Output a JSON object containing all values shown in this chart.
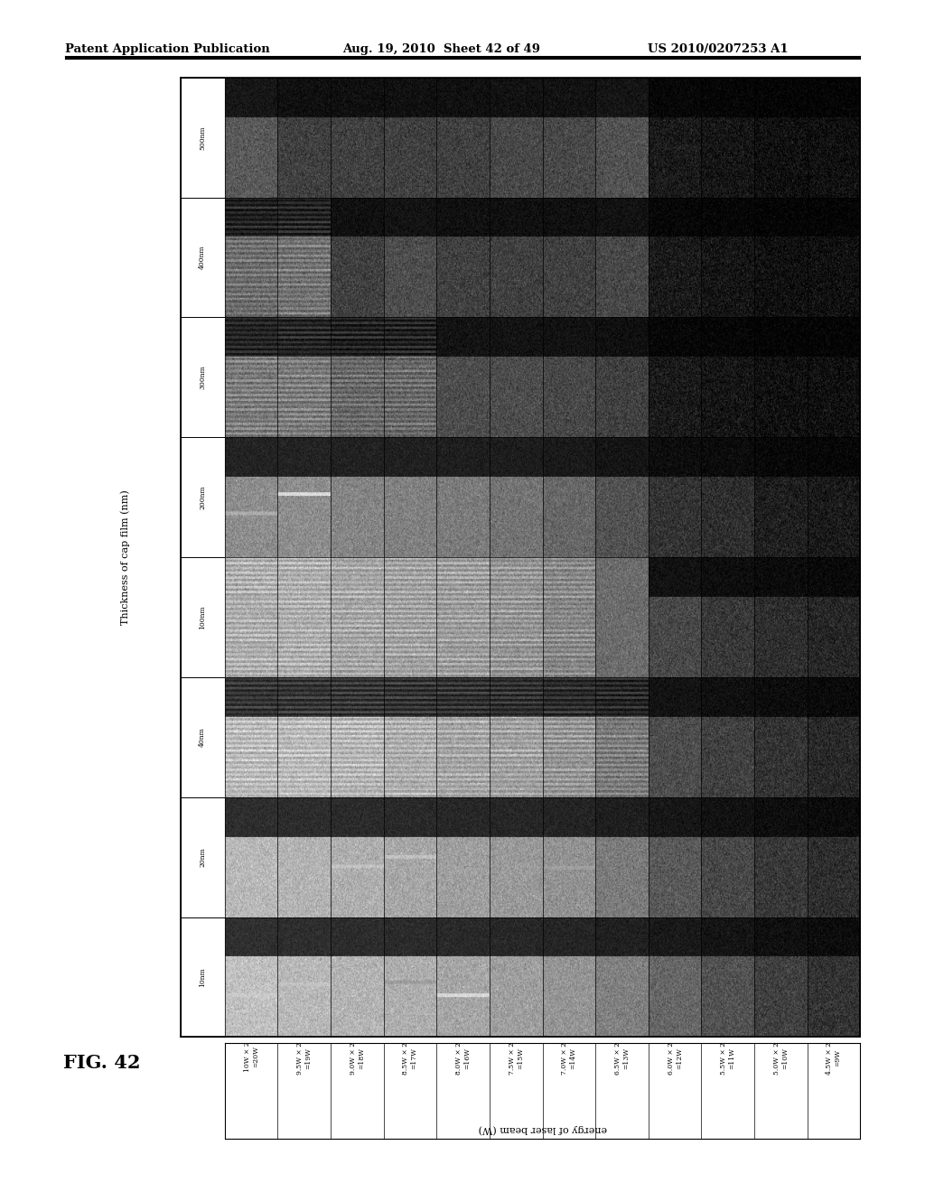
{
  "title_left": "Patent Application Publication",
  "title_mid": "Aug. 19, 2010  Sheet 42 of 49",
  "title_right": "US 2010/0207253 A1",
  "fig_label": "FIG. 42",
  "y_label": "Thickness of cap film (nm)",
  "x_label": "energy of laser beam (W)",
  "y_ticks": [
    "500nm",
    "400nm",
    "300nm",
    "200nm",
    "100nm",
    "40nm",
    "20nm",
    "10nm"
  ],
  "x_ticks": [
    "10W × 2\n=20W",
    "9.5W × 2\n=19W",
    "9.0W × 2\n=18W",
    "8.5W × 2\n=17W",
    "8.0W × 2\n=16W",
    "7.5W × 2\n=15W",
    "7.0W × 2\n=14W",
    "6.5W × 2\n=13W",
    "6.0W × 2\n=12W",
    "5.5W × 2\n=11W",
    "5.0W × 2\n=10W",
    "4.5W × 2\n=9W"
  ],
  "n_rows": 8,
  "n_cols": 12,
  "background_color": "#ffffff",
  "border_color": "#000000",
  "cell_brightness": [
    [
      0.35,
      0.25,
      0.25,
      0.25,
      0.25,
      0.28,
      0.28,
      0.32,
      0.1,
      0.08,
      0.06,
      0.06
    ],
    [
      0.4,
      0.42,
      0.25,
      0.3,
      0.25,
      0.25,
      0.25,
      0.28,
      0.1,
      0.08,
      0.06,
      0.06
    ],
    [
      0.45,
      0.45,
      0.38,
      0.38,
      0.3,
      0.3,
      0.28,
      0.25,
      0.1,
      0.08,
      0.06,
      0.06
    ],
    [
      0.55,
      0.55,
      0.52,
      0.5,
      0.48,
      0.45,
      0.4,
      0.32,
      0.2,
      0.18,
      0.12,
      0.1
    ],
    [
      0.65,
      0.65,
      0.62,
      0.6,
      0.58,
      0.55,
      0.5,
      0.42,
      0.28,
      0.22,
      0.18,
      0.15
    ],
    [
      0.7,
      0.7,
      0.68,
      0.65,
      0.62,
      0.6,
      0.55,
      0.45,
      0.3,
      0.25,
      0.2,
      0.16
    ],
    [
      0.72,
      0.7,
      0.68,
      0.65,
      0.62,
      0.6,
      0.57,
      0.48,
      0.35,
      0.28,
      0.22,
      0.18
    ],
    [
      0.75,
      0.72,
      0.7,
      0.68,
      0.65,
      0.62,
      0.58,
      0.5,
      0.4,
      0.32,
      0.25,
      0.2
    ]
  ],
  "cell_top_dark": [
    [
      true,
      true,
      true,
      true,
      true,
      true,
      true,
      true,
      true,
      true,
      true,
      true
    ],
    [
      true,
      true,
      true,
      true,
      true,
      true,
      true,
      true,
      true,
      true,
      true,
      true
    ],
    [
      true,
      true,
      true,
      true,
      true,
      true,
      true,
      true,
      true,
      true,
      true,
      true
    ],
    [
      true,
      true,
      true,
      true,
      true,
      true,
      true,
      true,
      true,
      true,
      true,
      true
    ],
    [
      false,
      false,
      false,
      false,
      false,
      false,
      false,
      false,
      true,
      true,
      true,
      true
    ],
    [
      true,
      true,
      true,
      true,
      true,
      true,
      true,
      true,
      true,
      true,
      true,
      true
    ],
    [
      true,
      true,
      true,
      true,
      true,
      true,
      true,
      true,
      true,
      true,
      true,
      true
    ],
    [
      true,
      true,
      true,
      true,
      true,
      true,
      true,
      true,
      true,
      true,
      true,
      true
    ]
  ],
  "cell_has_stripes": [
    [
      false,
      false,
      false,
      false,
      false,
      false,
      false,
      false,
      false,
      false,
      false,
      false
    ],
    [
      true,
      true,
      false,
      false,
      false,
      false,
      false,
      false,
      false,
      false,
      false,
      false
    ],
    [
      true,
      true,
      true,
      true,
      false,
      false,
      false,
      false,
      false,
      false,
      false,
      false
    ],
    [
      false,
      false,
      false,
      false,
      false,
      false,
      false,
      false,
      false,
      false,
      false,
      false
    ],
    [
      true,
      true,
      true,
      true,
      true,
      true,
      true,
      false,
      false,
      false,
      false,
      false
    ],
    [
      true,
      true,
      true,
      true,
      true,
      true,
      true,
      true,
      false,
      false,
      false,
      false
    ],
    [
      false,
      false,
      false,
      false,
      false,
      false,
      false,
      false,
      false,
      false,
      false,
      false
    ],
    [
      false,
      false,
      false,
      false,
      false,
      false,
      false,
      false,
      false,
      false,
      false,
      false
    ]
  ]
}
